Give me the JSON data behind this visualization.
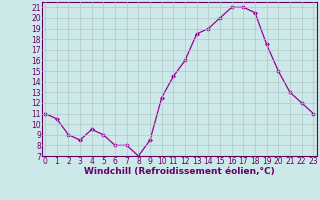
{
  "x": [
    0,
    1,
    2,
    3,
    4,
    5,
    6,
    7,
    8,
    9,
    10,
    11,
    12,
    13,
    14,
    15,
    16,
    17,
    18,
    19,
    20,
    21,
    22,
    23
  ],
  "y": [
    11.0,
    10.5,
    9.0,
    8.5,
    9.5,
    9.0,
    8.0,
    8.0,
    7.0,
    8.5,
    12.5,
    14.5,
    16.0,
    18.5,
    19.0,
    20.0,
    21.0,
    21.0,
    20.5,
    17.5,
    15.0,
    13.0,
    12.0,
    11.0
  ],
  "line_color": "#990099",
  "marker": "D",
  "markersize": 2.0,
  "linewidth": 0.9,
  "bg_color": "#cde8e8",
  "grid_color": "#b0c8c8",
  "xlabel": "Windchill (Refroidissement éolien,°C)",
  "xlabel_fontsize": 6.5,
  "tick_fontsize": 5.5,
  "ylim": [
    7,
    21.5
  ],
  "yticks": [
    7,
    8,
    9,
    10,
    11,
    12,
    13,
    14,
    15,
    16,
    17,
    18,
    19,
    20,
    21
  ],
  "xticks": [
    0,
    1,
    2,
    3,
    4,
    5,
    6,
    7,
    8,
    9,
    10,
    11,
    12,
    13,
    14,
    15,
    16,
    17,
    18,
    19,
    20,
    21,
    22,
    23
  ],
  "spine_color": "#660066",
  "axis_label_color": "#660066"
}
